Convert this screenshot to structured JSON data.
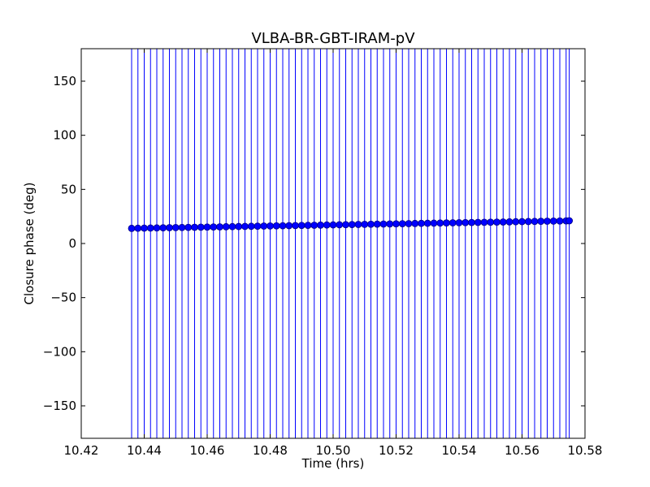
{
  "chart_data": {
    "type": "scatter",
    "title": "VLBA-BR-GBT-IRAM-pV",
    "xlabel": "Time (hrs)",
    "ylabel": "Closure phase (deg)",
    "xlim": [
      10.42,
      10.58
    ],
    "ylim": [
      -180,
      180
    ],
    "x_ticks": [
      10.42,
      10.44,
      10.46,
      10.48,
      10.5,
      10.52,
      10.54,
      10.56,
      10.58
    ],
    "x_tick_labels": [
      "10.42",
      "10.44",
      "10.46",
      "10.48",
      "10.50",
      "10.52",
      "10.54",
      "10.56",
      "10.58"
    ],
    "y_ticks": [
      -150,
      -100,
      -50,
      0,
      50,
      100,
      150
    ],
    "y_tick_labels": [
      "−150",
      "−100",
      "−50",
      "0",
      "50",
      "100",
      "150"
    ],
    "grid": false,
    "legend": "none",
    "error_bars": "extend beyond plotted y range (±180 deg)",
    "color": "#0000ff",
    "series": [
      {
        "x": [
          10.436,
          10.438,
          10.44,
          10.442,
          10.444,
          10.446,
          10.448,
          10.45,
          10.452,
          10.454,
          10.456,
          10.458,
          10.46,
          10.462,
          10.464,
          10.466,
          10.468,
          10.47,
          10.472,
          10.474,
          10.476,
          10.478,
          10.48,
          10.482,
          10.484,
          10.486,
          10.488,
          10.49,
          10.492,
          10.494,
          10.496,
          10.498,
          10.5,
          10.502,
          10.504,
          10.506,
          10.508,
          10.51,
          10.512,
          10.514,
          10.516,
          10.518,
          10.52,
          10.522,
          10.524,
          10.526,
          10.528,
          10.53,
          10.532,
          10.534,
          10.536,
          10.538,
          10.54,
          10.542,
          10.544,
          10.546,
          10.548,
          10.55,
          10.552,
          10.554,
          10.556,
          10.558,
          10.56,
          10.562,
          10.564,
          10.566,
          10.568,
          10.57,
          10.572,
          10.574,
          10.575
        ],
        "y": [
          14.0,
          14.1,
          14.2,
          14.3,
          14.4,
          14.5,
          14.6,
          14.7,
          14.8,
          14.9,
          15.0,
          15.1,
          15.2,
          15.3,
          15.4,
          15.5,
          15.6,
          15.7,
          15.8,
          15.9,
          16.0,
          16.1,
          16.2,
          16.3,
          16.4,
          16.5,
          16.6,
          16.7,
          16.8,
          16.9,
          17.0,
          17.1,
          17.2,
          17.3,
          17.4,
          17.5,
          17.6,
          17.7,
          17.8,
          17.9,
          18.0,
          18.1,
          18.2,
          18.3,
          18.4,
          18.5,
          18.6,
          18.7,
          18.8,
          18.9,
          19.0,
          19.1,
          19.2,
          19.3,
          19.4,
          19.5,
          19.6,
          19.7,
          19.8,
          19.9,
          20.0,
          20.1,
          20.2,
          20.3,
          20.4,
          20.5,
          20.6,
          20.7,
          20.8,
          20.9,
          21.0
        ]
      }
    ]
  }
}
